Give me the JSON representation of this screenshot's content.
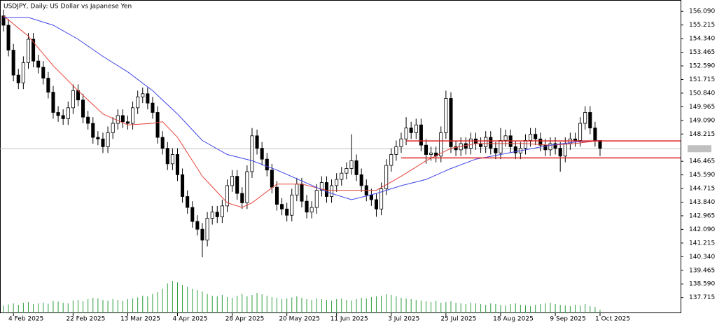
{
  "chart_data": {
    "type": "candlestick",
    "title": "USDJPY, Daily:  US Dollar vs Japanese Yen",
    "up_color": "#ffffff",
    "down_color": "#000000",
    "edge_color": "#000000",
    "volume_color": "#2e9e3e",
    "ylim": [
      136.71,
      156.82
    ],
    "xlim": [
      -0.7,
      136.2
    ],
    "vlim": [
      0,
      100
    ],
    "yticks": [
      {
        "value": 156.09,
        "label": "156.090"
      },
      {
        "value": 155.215,
        "label": "155.215"
      },
      {
        "value": 154.34,
        "label": "154.340"
      },
      {
        "value": 153.465,
        "label": "153.465"
      },
      {
        "value": 152.59,
        "label": "152.590"
      },
      {
        "value": 151.715,
        "label": "151.715"
      },
      {
        "value": 150.84,
        "label": "150.840"
      },
      {
        "value": 149.965,
        "label": "149.965"
      },
      {
        "value": 149.09,
        "label": "149.090"
      },
      {
        "value": 148.215,
        "label": "148.215"
      },
      {
        "value": 146.465,
        "label": "146.465"
      },
      {
        "value": 145.59,
        "label": "145.590"
      },
      {
        "value": 144.715,
        "label": "144.715"
      },
      {
        "value": 143.84,
        "label": "143.840"
      },
      {
        "value": 142.965,
        "label": "142.965"
      },
      {
        "value": 142.09,
        "label": "142.090"
      },
      {
        "value": 141.215,
        "label": "141.215"
      },
      {
        "value": 140.34,
        "label": "140.340"
      },
      {
        "value": 139.465,
        "label": "139.465"
      },
      {
        "value": 138.59,
        "label": "138.590"
      },
      {
        "value": 137.715,
        "label": "137.715"
      }
    ],
    "xticks": [
      {
        "value": 2,
        "label": "4 Feb 2025"
      },
      {
        "value": 14,
        "label": "22 Feb 2025"
      },
      {
        "value": 25,
        "label": "13 Mar 2025"
      },
      {
        "value": 35,
        "label": "4 Apr 2025"
      },
      {
        "value": 46,
        "label": "28 Apr 2025"
      },
      {
        "value": 57,
        "label": "20 May 2025"
      },
      {
        "value": 67,
        "label": "11 Jun 2025"
      },
      {
        "value": 78,
        "label": "3 Jul 2025"
      },
      {
        "value": 89,
        "label": "25 Jul 2025"
      },
      {
        "value": 100,
        "label": "18 Aug 2025"
      },
      {
        "value": 111,
        "label": "9 Sep 2025"
      },
      {
        "value": 120,
        "label": "1 Oct 2025"
      }
    ],
    "open": [
      155.8,
      155.2,
      153.6,
      152.0,
      151.5,
      152.8,
      154.3,
      152.9,
      152.5,
      151.8,
      150.9,
      149.6,
      149.4,
      149.2,
      149.9,
      151.0,
      150.4,
      149.3,
      148.9,
      148.0,
      147.9,
      147.4,
      148.3,
      148.9,
      149.4,
      149.0,
      148.9,
      149.9,
      150.6,
      150.8,
      150.2,
      149.6,
      148.0,
      147.3,
      146.3,
      146.9,
      145.6,
      144.2,
      143.5,
      142.6,
      142.1,
      141.4,
      142.8,
      143.2,
      142.9,
      143.6,
      144.9,
      145.5,
      144.4,
      143.8,
      145.8,
      148.1,
      147.3,
      146.6,
      145.9,
      144.8,
      143.7,
      143.4,
      143.0,
      144.3,
      145.0,
      143.9,
      143.2,
      143.5,
      144.6,
      145.1,
      144.2,
      144.9,
      145.3,
      145.7,
      146.0,
      146.5,
      145.6,
      144.9,
      144.3,
      144.0,
      143.4,
      144.7,
      146.2,
      146.9,
      147.4,
      147.9,
      148.6,
      148.3,
      148.8,
      147.5,
      146.9,
      147.0,
      146.8,
      148.3,
      150.5,
      147.4,
      147.2,
      147.6,
      147.3,
      147.9,
      147.6,
      147.4,
      148.0,
      147.3,
      147.0,
      147.8,
      148.1,
      147.4,
      147.0,
      147.3,
      147.8,
      148.2,
      147.9,
      147.5,
      147.2,
      147.6,
      147.3,
      146.8,
      147.6,
      147.9,
      147.8,
      148.9,
      149.6,
      148.6,
      147.8
    ],
    "high": [
      156.2,
      155.6,
      154.0,
      152.4,
      153.2,
      154.7,
      154.7,
      153.3,
      152.9,
      152.2,
      151.3,
      150.0,
      149.8,
      150.3,
      151.4,
      151.4,
      150.8,
      149.7,
      149.3,
      148.4,
      148.3,
      148.7,
      149.3,
      149.8,
      149.8,
      149.4,
      150.3,
      151.0,
      151.2,
      151.2,
      150.6,
      150.0,
      148.4,
      147.7,
      147.3,
      147.3,
      146.0,
      144.6,
      143.9,
      143.0,
      142.5,
      143.2,
      143.6,
      143.6,
      144.0,
      145.3,
      145.9,
      145.9,
      144.8,
      146.2,
      148.6,
      148.5,
      147.7,
      147.0,
      146.3,
      145.2,
      144.1,
      143.8,
      144.7,
      145.4,
      145.4,
      144.3,
      143.9,
      145.0,
      145.5,
      145.5,
      145.3,
      145.7,
      146.1,
      146.4,
      148.2,
      146.9,
      146.0,
      145.3,
      144.7,
      144.4,
      145.1,
      146.6,
      147.3,
      147.8,
      148.3,
      149.3,
      149.0,
      149.2,
      149.2,
      147.9,
      147.4,
      147.4,
      148.7,
      151.0,
      150.9,
      147.8,
      148.0,
      148.0,
      148.3,
      148.3,
      148.0,
      148.4,
      148.4,
      147.7,
      148.6,
      148.5,
      148.5,
      147.8,
      147.7,
      148.2,
      148.6,
      148.6,
      148.3,
      147.9,
      148.0,
      148.0,
      147.7,
      148.0,
      148.3,
      148.3,
      149.3,
      150.0,
      150.0,
      149.0,
      147.8
    ],
    "low": [
      154.8,
      153.2,
      151.6,
      151.1,
      151.1,
      152.4,
      152.5,
      152.1,
      151.4,
      150.5,
      149.2,
      149.0,
      148.8,
      148.8,
      149.5,
      150.0,
      148.9,
      148.5,
      147.6,
      147.5,
      147.0,
      147.0,
      147.9,
      148.5,
      148.6,
      148.5,
      148.5,
      149.5,
      150.2,
      149.8,
      149.2,
      147.6,
      146.9,
      145.9,
      145.9,
      145.2,
      143.8,
      143.1,
      142.2,
      141.7,
      140.3,
      141.0,
      142.4,
      142.5,
      142.5,
      143.2,
      144.5,
      144.0,
      143.4,
      143.4,
      145.4,
      146.9,
      146.2,
      145.5,
      144.4,
      143.3,
      143.0,
      142.6,
      142.6,
      143.9,
      143.5,
      142.8,
      142.8,
      143.1,
      144.2,
      143.8,
      143.8,
      144.5,
      144.9,
      145.3,
      145.6,
      145.2,
      144.5,
      143.9,
      143.6,
      142.9,
      143.0,
      144.3,
      145.8,
      146.5,
      147.0,
      147.5,
      147.9,
      147.9,
      147.1,
      146.3,
      146.5,
      146.4,
      146.4,
      147.9,
      147.0,
      146.8,
      146.8,
      146.9,
      146.9,
      147.2,
      147.0,
      147.0,
      146.9,
      146.6,
      146.6,
      147.4,
      147.0,
      146.6,
      146.6,
      146.9,
      147.4,
      147.5,
      147.1,
      146.8,
      146.8,
      146.9,
      145.8,
      146.4,
      147.2,
      147.4,
      147.4,
      148.5,
      148.2,
      147.4,
      146.8
    ],
    "close": [
      155.2,
      153.6,
      152.0,
      151.5,
      152.8,
      154.3,
      152.9,
      152.5,
      151.8,
      150.9,
      149.6,
      149.4,
      149.2,
      149.9,
      151.0,
      150.4,
      149.3,
      148.9,
      148.0,
      147.9,
      147.4,
      148.3,
      148.9,
      149.4,
      149.0,
      148.9,
      149.9,
      150.6,
      150.8,
      150.2,
      149.6,
      148.0,
      147.3,
      146.3,
      146.9,
      145.6,
      144.2,
      143.5,
      142.6,
      142.1,
      141.4,
      142.8,
      143.2,
      142.9,
      143.6,
      144.9,
      145.5,
      144.4,
      143.8,
      145.8,
      148.1,
      147.3,
      146.6,
      145.9,
      144.8,
      143.7,
      143.4,
      143.0,
      144.3,
      145.0,
      143.9,
      143.2,
      143.5,
      144.6,
      145.1,
      144.2,
      144.9,
      145.3,
      145.7,
      146.0,
      146.5,
      145.6,
      144.9,
      144.3,
      144.0,
      143.4,
      144.7,
      146.2,
      146.9,
      147.4,
      147.9,
      148.6,
      148.3,
      148.8,
      147.5,
      146.9,
      147.0,
      146.8,
      148.3,
      150.5,
      147.4,
      147.2,
      147.6,
      147.3,
      147.9,
      147.6,
      147.4,
      148.0,
      147.3,
      147.0,
      147.8,
      148.1,
      147.4,
      147.0,
      147.3,
      147.8,
      148.2,
      147.9,
      147.5,
      147.2,
      147.6,
      147.3,
      146.8,
      147.6,
      147.9,
      147.8,
      148.9,
      149.6,
      148.6,
      147.8,
      147.3
    ],
    "volume": [
      22,
      25,
      28,
      24,
      30,
      32,
      26,
      28,
      30,
      27,
      35,
      33,
      30,
      28,
      36,
      38,
      34,
      40,
      44,
      42,
      38,
      36,
      40,
      38,
      35,
      40,
      42,
      45,
      50,
      48,
      55,
      60,
      70,
      85,
      92,
      88,
      80,
      75,
      70,
      66,
      62,
      55,
      50,
      48,
      52,
      46,
      44,
      50,
      55,
      48,
      52,
      58,
      54,
      50,
      46,
      44,
      40,
      42,
      45,
      48,
      44,
      40,
      38,
      42,
      40,
      38,
      36,
      40,
      42,
      38,
      36,
      40,
      44,
      42,
      46,
      48,
      50,
      54,
      52,
      48,
      44,
      42,
      40,
      38,
      36,
      34,
      32,
      36,
      30,
      32,
      34,
      30,
      28,
      26,
      30,
      28,
      26,
      24,
      28,
      26,
      24,
      22,
      26,
      28,
      24,
      22,
      20,
      24,
      26,
      28,
      30,
      26,
      24,
      22,
      20,
      24,
      22,
      26,
      20,
      18,
      10
    ],
    "lines": [
      {
        "color": "#e8433a",
        "x": [
          0,
          5,
          10,
          15,
          20,
          25,
          30,
          32,
          35,
          40,
          45,
          48,
          50,
          55,
          60,
          65,
          70,
          75,
          80,
          85,
          90,
          95,
          100,
          105,
          110,
          115,
          120
        ],
        "values": [
          155.8,
          154.5,
          152.6,
          151.0,
          149.5,
          148.8,
          148.9,
          149.0,
          148.0,
          145.5,
          143.8,
          143.5,
          143.8,
          145.0,
          145.0,
          144.6,
          144.6,
          144.6,
          145.5,
          146.5,
          147.3,
          147.6,
          147.6,
          147.6,
          147.5,
          147.6,
          147.8
        ]
      },
      {
        "color": "#3f45e6",
        "x": [
          0,
          5,
          10,
          15,
          20,
          25,
          30,
          35,
          40,
          45,
          50,
          55,
          60,
          65,
          70,
          75,
          80,
          85,
          90,
          95,
          100,
          105,
          110,
          115,
          120
        ],
        "values": [
          155.7,
          155.7,
          155.2,
          154.3,
          153.2,
          152.2,
          151.0,
          149.5,
          147.8,
          146.9,
          146.5,
          145.9,
          145.2,
          144.5,
          144.0,
          144.4,
          144.9,
          145.3,
          146.0,
          146.6,
          146.9,
          147.2,
          147.5,
          147.7,
          147.8
        ]
      }
    ],
    "hlines": [
      {
        "value": 147.77,
        "from": 81,
        "color": "#e02020"
      },
      {
        "value": 146.68,
        "from": 80,
        "color": "#e02020"
      }
    ],
    "price_line": {
      "value": 147.27,
      "color": "#c0c0c0"
    }
  }
}
